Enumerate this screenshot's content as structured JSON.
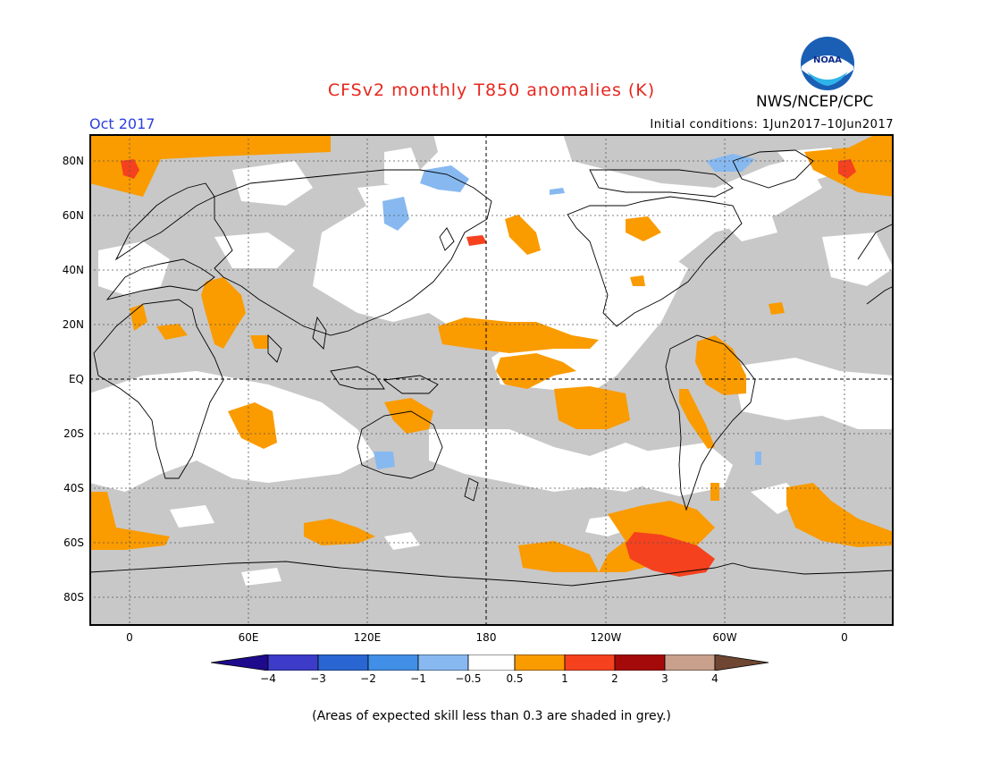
{
  "title": "CFSv2 monthly T850 anomalies (K)",
  "month": "Oct 2017",
  "initial_conditions": "Initial conditions: 1Jun2017–10Jun2017",
  "agency": "NWS/NCEP/CPC",
  "logo_text": "NOAA",
  "footnote": "(Areas of expected skill less than 0.3 are shaded in grey.)",
  "lat_labels": [
    "80N",
    "60N",
    "40N",
    "20N",
    "EQ",
    "20S",
    "40S",
    "60S",
    "80S"
  ],
  "lon_labels": [
    "0",
    "60E",
    "120E",
    "180",
    "120W",
    "60W",
    "0"
  ],
  "colorbar": {
    "labels": [
      "−4",
      "−3",
      "−2",
      "−1",
      "−0.5",
      "0.5",
      "1",
      "2",
      "3",
      "4"
    ],
    "colors": [
      "#1e0a8c",
      "#3c3cc8",
      "#2a66d2",
      "#418fe6",
      "#87b9f0",
      "#ffffff",
      "#fa9b00",
      "#f5411e",
      "#a50a0a",
      "#c8a08c",
      "#6e4632"
    ]
  },
  "colors": {
    "grey_low_skill": "#c8c8c8",
    "title_red": "#e8261e",
    "month_blue": "#2a3fe0"
  }
}
